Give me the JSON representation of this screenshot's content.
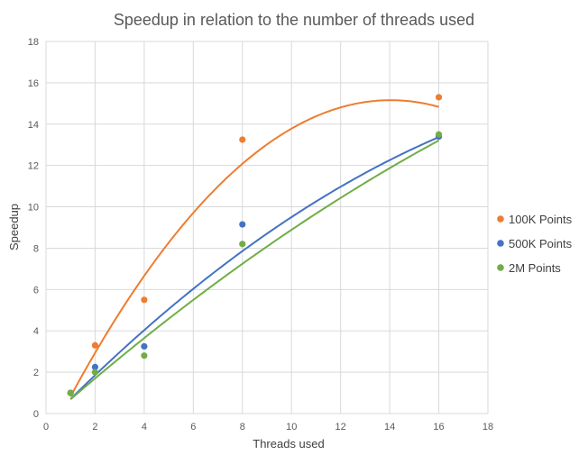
{
  "chart_data": {
    "type": "scatter",
    "title": "Speedup in relation to the number of threads used",
    "xlabel": "Threads used",
    "ylabel": "Speedup",
    "xlim": [
      0,
      18
    ],
    "ylim": [
      0,
      18
    ],
    "xticks": [
      0,
      2,
      4,
      6,
      8,
      10,
      12,
      14,
      16,
      18
    ],
    "yticks": [
      0,
      2,
      4,
      6,
      8,
      10,
      12,
      14,
      16,
      18
    ],
    "grid": true,
    "legend_position": "right",
    "trendline": "polynomial-2",
    "series": [
      {
        "name": "100K Points",
        "color": "#ED7D31",
        "x": [
          1,
          2,
          4,
          8,
          16
        ],
        "y": [
          1.0,
          3.3,
          5.5,
          13.25,
          15.3
        ],
        "trend": [
          -0.0843,
          2.3672,
          -1.46
        ]
      },
      {
        "name": "500K Points",
        "color": "#4472C4",
        "x": [
          1,
          2,
          4,
          8,
          16
        ],
        "y": [
          1.0,
          2.25,
          3.25,
          9.15,
          13.4
        ],
        "trend": [
          -0.0222,
          1.2222,
          -0.5
        ]
      },
      {
        "name": "2M Points",
        "color": "#70AD47",
        "x": [
          1,
          2,
          4,
          8,
          16
        ],
        "y": [
          1.0,
          2.0,
          2.8,
          8.2,
          13.5
        ],
        "trend": [
          -0.0127,
          1.0508,
          -0.35
        ]
      }
    ]
  }
}
